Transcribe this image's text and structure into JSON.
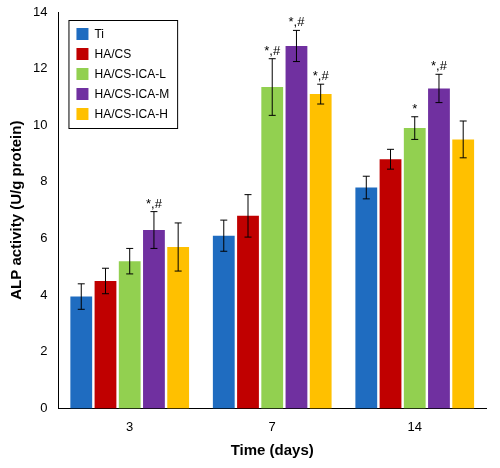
{
  "chart_data": {
    "type": "bar",
    "x_label": "Time (days)",
    "y_label": "ALP activity (U/g protein)",
    "categories": [
      "3",
      "7",
      "14"
    ],
    "ylim": [
      0,
      14
    ],
    "yticks": [
      0,
      2,
      4,
      6,
      8,
      10,
      12,
      14
    ],
    "grid": false,
    "legend": "upper left",
    "series": [
      {
        "name": "Ti",
        "color": "#1f6cc0",
        "values": [
          3.95,
          6.1,
          7.8
        ],
        "errors": [
          0.45,
          0.55,
          0.4
        ],
        "annotations": [
          null,
          null,
          null
        ]
      },
      {
        "name": "HA/CS",
        "color": "#c00000",
        "values": [
          4.5,
          6.8,
          8.8
        ],
        "errors": [
          0.45,
          0.75,
          0.35
        ],
        "annotations": [
          null,
          null,
          null
        ]
      },
      {
        "name": "HA/CS-ICA-L",
        "color": "#92d050",
        "values": [
          5.2,
          11.35,
          9.9
        ],
        "errors": [
          0.45,
          1.0,
          0.4
        ],
        "annotations": [
          null,
          "*,#",
          "*"
        ]
      },
      {
        "name": "HA/CS-ICA-M",
        "color": "#7030a0",
        "values": [
          6.3,
          12.8,
          11.3
        ],
        "errors": [
          0.65,
          0.55,
          0.5
        ],
        "annotations": [
          "*,#",
          "*,#",
          "*,#"
        ]
      },
      {
        "name": "HA/CS-ICA-H",
        "color": "#ffc000",
        "values": [
          5.7,
          11.1,
          9.5
        ],
        "errors": [
          0.85,
          0.35,
          0.65
        ],
        "annotations": [
          null,
          "*,#",
          null
        ]
      }
    ]
  }
}
